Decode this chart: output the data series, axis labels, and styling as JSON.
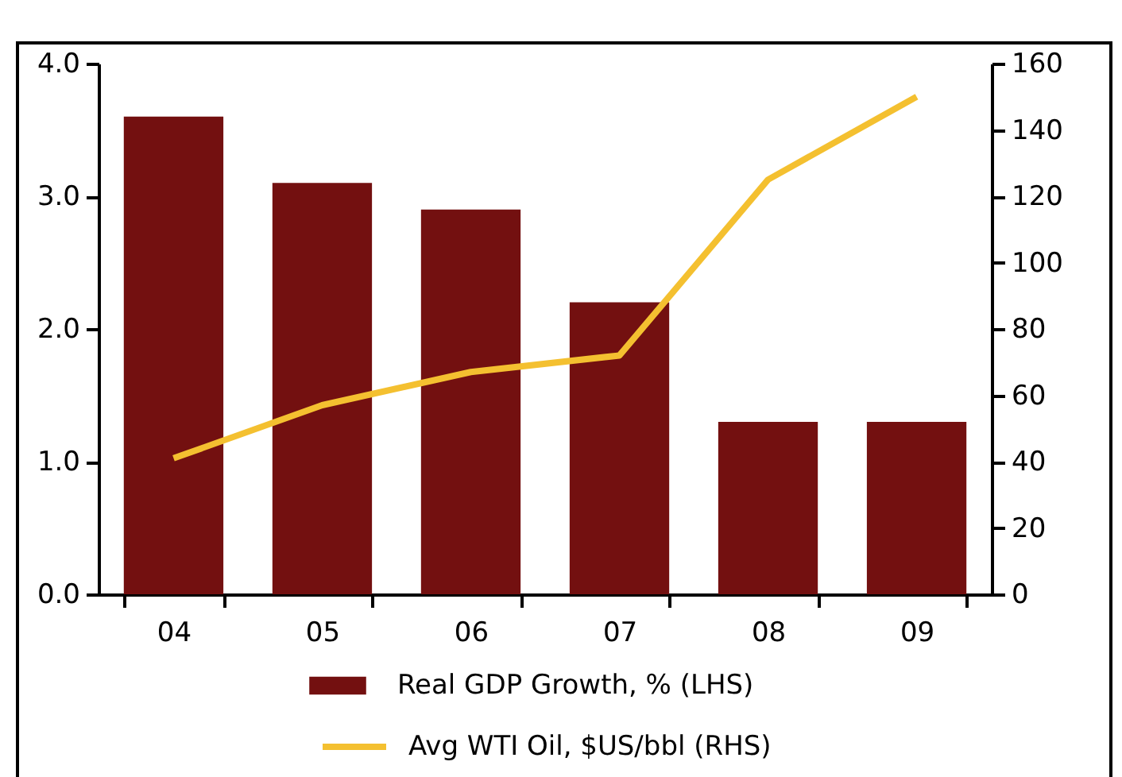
{
  "chart_data": {
    "type": "bar",
    "categories": [
      "04",
      "05",
      "06",
      "07",
      "08",
      "09"
    ],
    "series": [
      {
        "name": "Real GDP Growth, % (LHS)",
        "color": "#731010",
        "values": [
          3.6,
          3.1,
          2.9,
          2.2,
          1.3,
          1.3
        ]
      },
      {
        "name": "Avg WTI Oil, $US/bbl (RHS)",
        "type": "line",
        "axis": "y2",
        "color": "#f4c030",
        "values": [
          41,
          57,
          67,
          72,
          125,
          150
        ]
      }
    ],
    "ylim": [
      0,
      4
    ],
    "yticks": [
      {
        "value": 0,
        "label": "0.0"
      },
      {
        "value": 1,
        "label": "1.0"
      },
      {
        "value": 2,
        "label": "2.0"
      },
      {
        "value": 3,
        "label": "3.0"
      },
      {
        "value": 4,
        "label": "4.0"
      }
    ],
    "y2lim": [
      0,
      160
    ],
    "y2ticks": [
      0,
      20,
      40,
      60,
      80,
      100,
      120,
      140,
      160
    ],
    "grid": false,
    "legend": "bottom",
    "marker": "none"
  }
}
